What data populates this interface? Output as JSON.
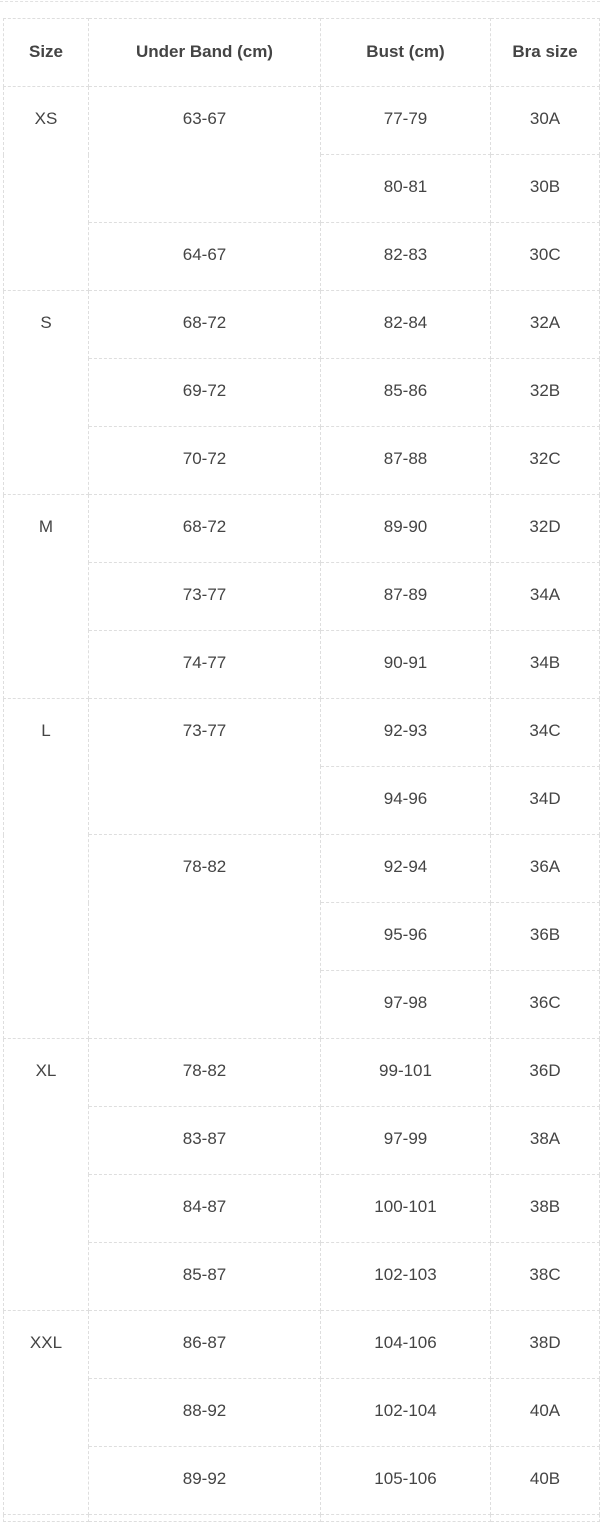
{
  "table": {
    "headers": [
      "Size",
      "Under Band (cm)",
      "Bust (cm)",
      "Bra size"
    ],
    "groups": [
      {
        "size": "XS",
        "bands": [
          {
            "band": "63-67",
            "rows": [
              {
                "bust": "77-79",
                "bra": "30A"
              },
              {
                "bust": "80-81",
                "bra": "30B"
              }
            ]
          },
          {
            "band": "64-67",
            "rows": [
              {
                "bust": "82-83",
                "bra": "30C"
              }
            ]
          }
        ]
      },
      {
        "size": "S",
        "bands": [
          {
            "band": "68-72",
            "rows": [
              {
                "bust": "82-84",
                "bra": "32A"
              }
            ]
          },
          {
            "band": "69-72",
            "rows": [
              {
                "bust": "85-86",
                "bra": "32B"
              }
            ]
          },
          {
            "band": "70-72",
            "rows": [
              {
                "bust": "87-88",
                "bra": "32C"
              }
            ]
          }
        ]
      },
      {
        "size": "M",
        "bands": [
          {
            "band": "68-72",
            "rows": [
              {
                "bust": "89-90",
                "bra": "32D"
              }
            ]
          },
          {
            "band": "73-77",
            "rows": [
              {
                "bust": "87-89",
                "bra": "34A"
              }
            ]
          },
          {
            "band": "74-77",
            "rows": [
              {
                "bust": "90-91",
                "bra": "34B"
              }
            ]
          }
        ]
      },
      {
        "size": "L",
        "bands": [
          {
            "band": "73-77",
            "rows": [
              {
                "bust": "92-93",
                "bra": "34C"
              },
              {
                "bust": "94-96",
                "bra": "34D"
              }
            ]
          },
          {
            "band": "78-82",
            "rows": [
              {
                "bust": "92-94",
                "bra": "36A"
              },
              {
                "bust": "95-96",
                "bra": "36B"
              },
              {
                "bust": "97-98",
                "bra": "36C"
              }
            ]
          }
        ]
      },
      {
        "size": "XL",
        "bands": [
          {
            "band": "78-82",
            "rows": [
              {
                "bust": "99-101",
                "bra": "36D"
              }
            ]
          },
          {
            "band": "83-87",
            "rows": [
              {
                "bust": "97-99",
                "bra": "38A"
              }
            ]
          },
          {
            "band": "84-87",
            "rows": [
              {
                "bust": "100-101",
                "bra": "38B"
              }
            ]
          },
          {
            "band": "85-87",
            "rows": [
              {
                "bust": "102-103",
                "bra": "38C"
              }
            ]
          }
        ]
      },
      {
        "size": "XXL",
        "bands": [
          {
            "band": "86-87",
            "rows": [
              {
                "bust": "104-106",
                "bra": "38D"
              }
            ]
          },
          {
            "band": "88-92",
            "rows": [
              {
                "bust": "102-104",
                "bra": "40A"
              }
            ]
          },
          {
            "band": "89-92",
            "rows": [
              {
                "bust": "105-106",
                "bra": "40B"
              }
            ]
          }
        ]
      }
    ]
  }
}
